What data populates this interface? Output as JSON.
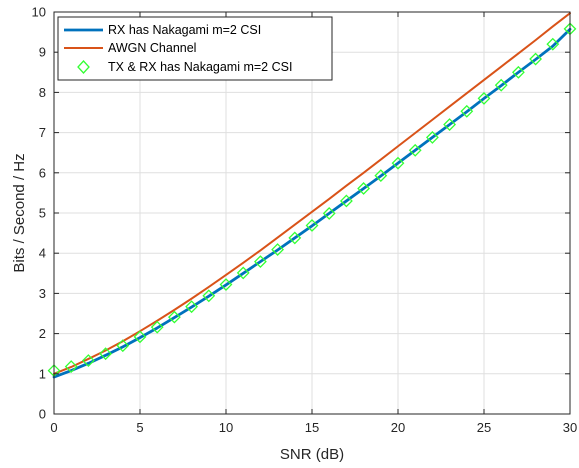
{
  "chart_data": {
    "type": "line",
    "xlabel": "SNR (dB)",
    "ylabel": "Bits / Second / Hz",
    "xlim": [
      0,
      30
    ],
    "ylim": [
      0,
      10
    ],
    "xticks": [
      0,
      5,
      10,
      15,
      20,
      25,
      30
    ],
    "yticks": [
      0,
      1,
      2,
      3,
      4,
      5,
      6,
      7,
      8,
      9,
      10
    ],
    "grid": true,
    "legend_position": "top-left",
    "series": [
      {
        "name": "RX has Nakagami m=2 CSI",
        "style": "line",
        "color": "#0072BD",
        "x": [
          0,
          1,
          2,
          3,
          4,
          5,
          6,
          7,
          8,
          9,
          10,
          11,
          12,
          13,
          14,
          15,
          16,
          17,
          18,
          19,
          20,
          21,
          22,
          23,
          24,
          25,
          26,
          27,
          28,
          29,
          30
        ],
        "values": [
          0.92,
          1.08,
          1.26,
          1.46,
          1.67,
          1.9,
          2.14,
          2.4,
          2.66,
          2.93,
          3.21,
          3.5,
          3.79,
          4.08,
          4.38,
          4.68,
          4.99,
          5.3,
          5.61,
          5.92,
          6.24,
          6.56,
          6.88,
          7.2,
          7.52,
          7.85,
          8.17,
          8.5,
          8.82,
          9.15,
          9.57
        ]
      },
      {
        "name": "AWGN Channel",
        "style": "line",
        "color": "#D95319",
        "x": [
          0,
          1,
          2,
          3,
          4,
          5,
          6,
          7,
          8,
          9,
          10,
          11,
          12,
          13,
          14,
          15,
          16,
          17,
          18,
          19,
          20,
          21,
          22,
          23,
          24,
          25,
          26,
          27,
          28,
          29,
          30
        ],
        "values": [
          1.0,
          1.17,
          1.37,
          1.58,
          1.81,
          2.06,
          2.32,
          2.59,
          2.87,
          3.16,
          3.46,
          3.76,
          4.07,
          4.39,
          4.71,
          5.03,
          5.35,
          5.68,
          6.0,
          6.33,
          6.66,
          6.99,
          7.32,
          7.65,
          7.98,
          8.31,
          8.64,
          8.97,
          9.3,
          9.64,
          9.97
        ]
      },
      {
        "name": "TX & RX has Nakagami m=2 CSI",
        "style": "markers",
        "marker": "diamond",
        "color": "#33FF33",
        "x": [
          0,
          1,
          2,
          3,
          4,
          5,
          6,
          7,
          8,
          9,
          10,
          11,
          12,
          13,
          14,
          15,
          16,
          17,
          18,
          19,
          20,
          21,
          22,
          23,
          24,
          25,
          26,
          27,
          28,
          29,
          30
        ],
        "values": [
          1.08,
          1.18,
          1.33,
          1.5,
          1.7,
          1.92,
          2.16,
          2.41,
          2.67,
          2.94,
          3.22,
          3.51,
          3.79,
          4.09,
          4.38,
          4.69,
          4.99,
          5.3,
          5.61,
          5.93,
          6.24,
          6.56,
          6.88,
          7.2,
          7.53,
          7.85,
          8.18,
          8.5,
          8.83,
          9.2,
          9.58
        ]
      }
    ]
  }
}
